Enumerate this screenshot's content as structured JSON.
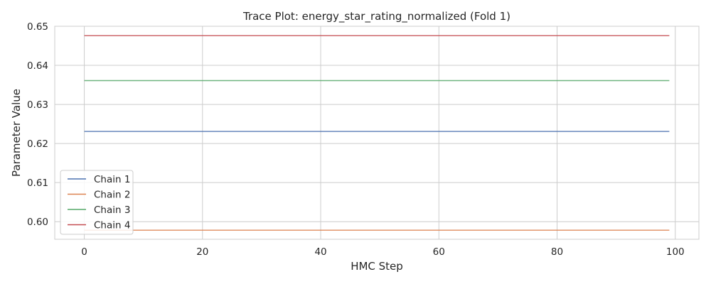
{
  "chart_data": {
    "type": "line",
    "title": "Trace Plot: energy_star_rating_normalized (Fold 1)",
    "xlabel": "HMC Step",
    "ylabel": "Parameter Value",
    "xlim": [
      -5,
      104
    ],
    "ylim": [
      0.5955,
      0.65
    ],
    "xticks": [
      0,
      20,
      40,
      60,
      80,
      100
    ],
    "yticks": [
      0.6,
      0.61,
      0.62,
      0.63,
      0.64,
      0.65
    ],
    "xtick_labels": [
      "0",
      "20",
      "40",
      "60",
      "80",
      "100"
    ],
    "ytick_labels": [
      "0.60",
      "0.61",
      "0.62",
      "0.63",
      "0.64",
      "0.65"
    ],
    "grid": true,
    "legend_position": "lower-left",
    "x": [
      0,
      99
    ],
    "series": [
      {
        "name": "Chain 1",
        "color": "#4c72b0",
        "values": [
          0.6231,
          0.6231
        ]
      },
      {
        "name": "Chain 2",
        "color": "#dd8452",
        "values": [
          0.5978,
          0.5978
        ]
      },
      {
        "name": "Chain 3",
        "color": "#55a868",
        "values": [
          0.6361,
          0.6361
        ]
      },
      {
        "name": "Chain 4",
        "color": "#c44e52",
        "values": [
          0.6476,
          0.6476
        ]
      }
    ]
  }
}
